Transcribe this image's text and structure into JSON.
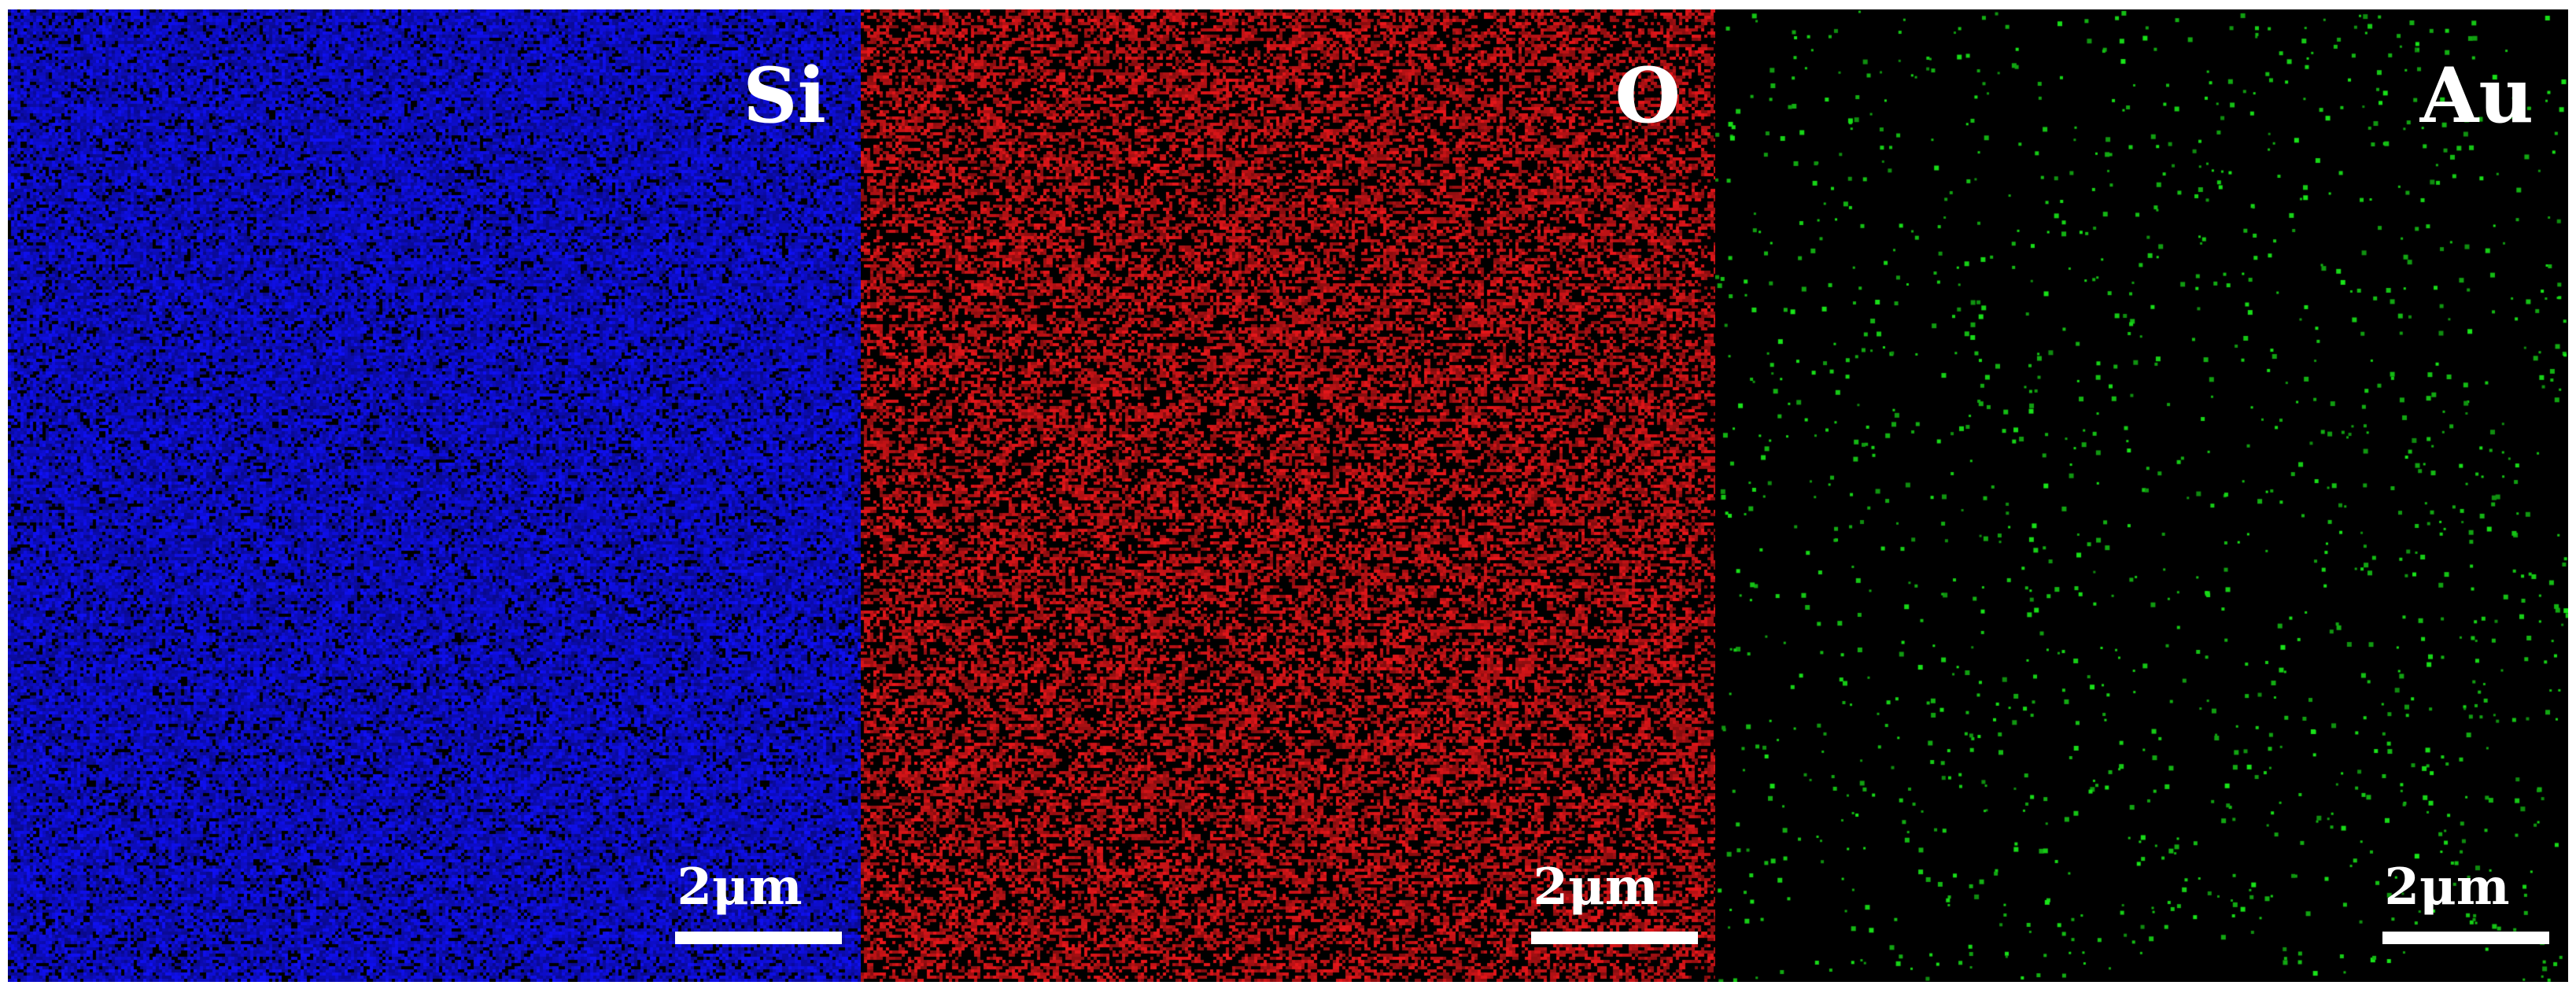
{
  "panels": [
    {
      "element": "Si",
      "color": "#1010f5",
      "scale_bar_label": "2μm"
    },
    {
      "element": "O",
      "color": "#e8161a",
      "scale_bar_label": "2μm"
    },
    {
      "element": "Au",
      "color": "#19e619",
      "scale_bar_label": "2μm"
    }
  ]
}
